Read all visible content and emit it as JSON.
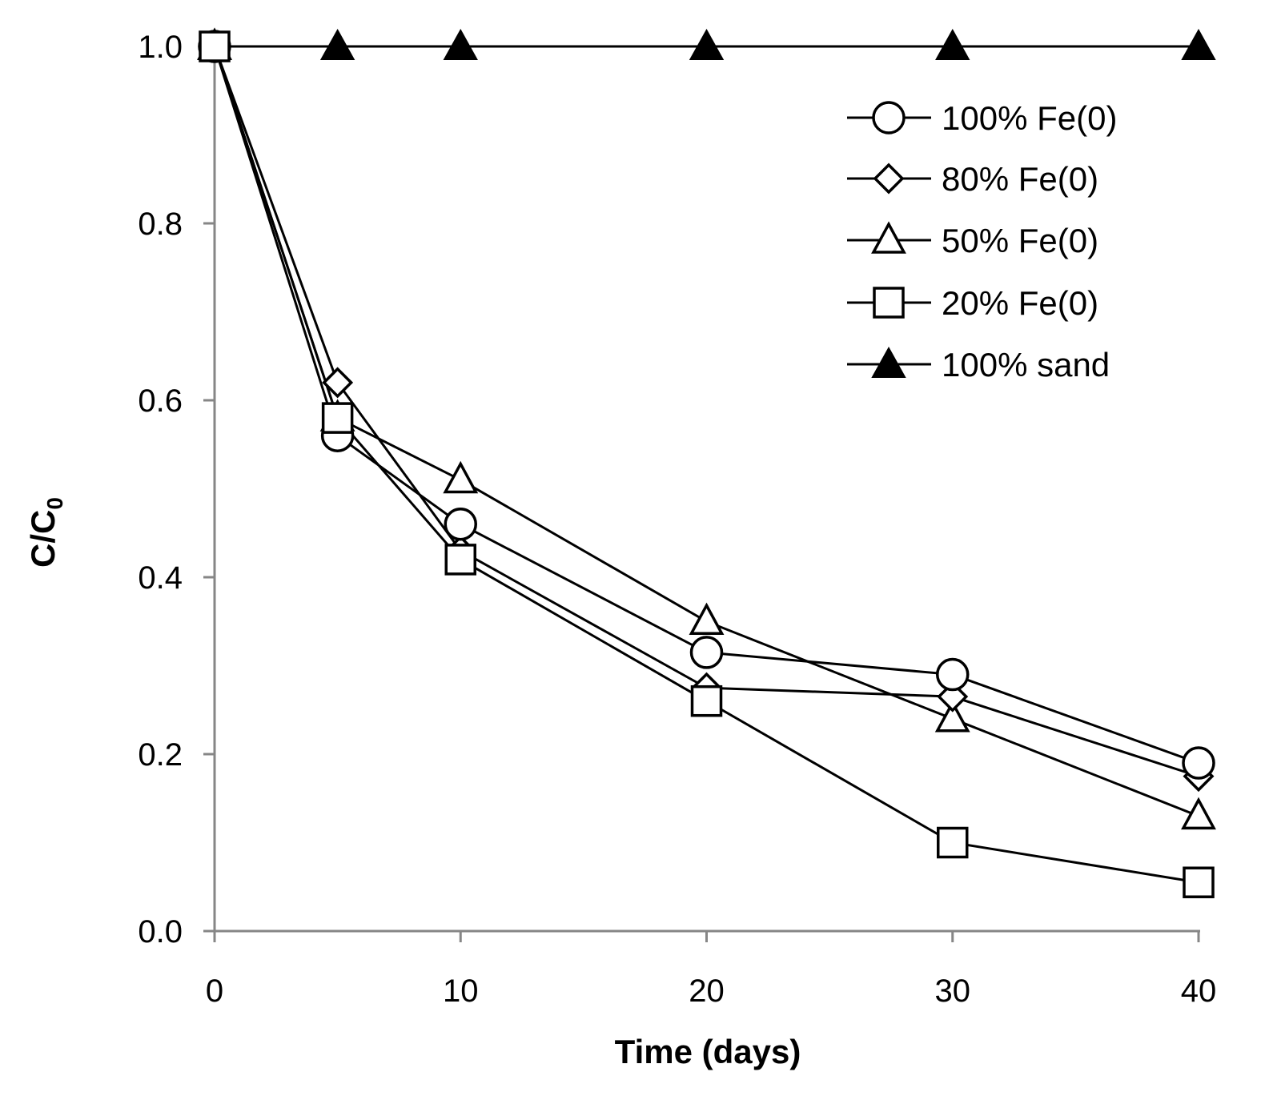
{
  "chart_data": {
    "type": "line",
    "title": "",
    "xlabel": "Time (days)",
    "ylabel": "C/C",
    "ylabel_subscript": "0",
    "xlim": [
      0,
      40
    ],
    "ylim": [
      0,
      1
    ],
    "x_ticks": [
      0,
      10,
      20,
      30,
      40
    ],
    "x_tick_labels": [
      "0",
      "10",
      "20",
      "30",
      "40"
    ],
    "y_ticks": [
      0,
      0.2,
      0.4,
      0.6,
      0.8,
      1.0
    ],
    "y_tick_labels": [
      "0.0",
      "0.2",
      "0.4",
      "0.6",
      "0.8",
      "1.0"
    ],
    "grid": false,
    "legend_position": "top-right",
    "series": [
      {
        "name": "100% Fe(0)",
        "marker": "circle-open",
        "x": [
          0,
          5,
          10,
          20,
          30,
          40
        ],
        "y": [
          1.0,
          0.56,
          0.46,
          0.315,
          0.29,
          0.19
        ]
      },
      {
        "name": "80% Fe(0)",
        "marker": "diamond-open",
        "x": [
          0,
          5,
          10,
          20,
          30,
          40
        ],
        "y": [
          1.0,
          0.62,
          0.43,
          0.275,
          0.265,
          0.175
        ]
      },
      {
        "name": "50% Fe(0)",
        "marker": "triangle-open",
        "x": [
          0,
          5,
          10,
          20,
          30,
          40
        ],
        "y": [
          1.0,
          0.58,
          0.51,
          0.35,
          0.24,
          0.13
        ]
      },
      {
        "name": "20% Fe(0)",
        "marker": "square-open",
        "x": [
          0,
          5,
          10,
          20,
          30,
          40
        ],
        "y": [
          1.0,
          0.58,
          0.42,
          0.26,
          0.1,
          0.055
        ]
      },
      {
        "name": "100% sand",
        "marker": "triangle-filled",
        "x": [
          0,
          5,
          10,
          20,
          30,
          40
        ],
        "y": [
          1.0,
          1.0,
          1.0,
          1.0,
          1.0,
          1.0
        ]
      }
    ]
  }
}
